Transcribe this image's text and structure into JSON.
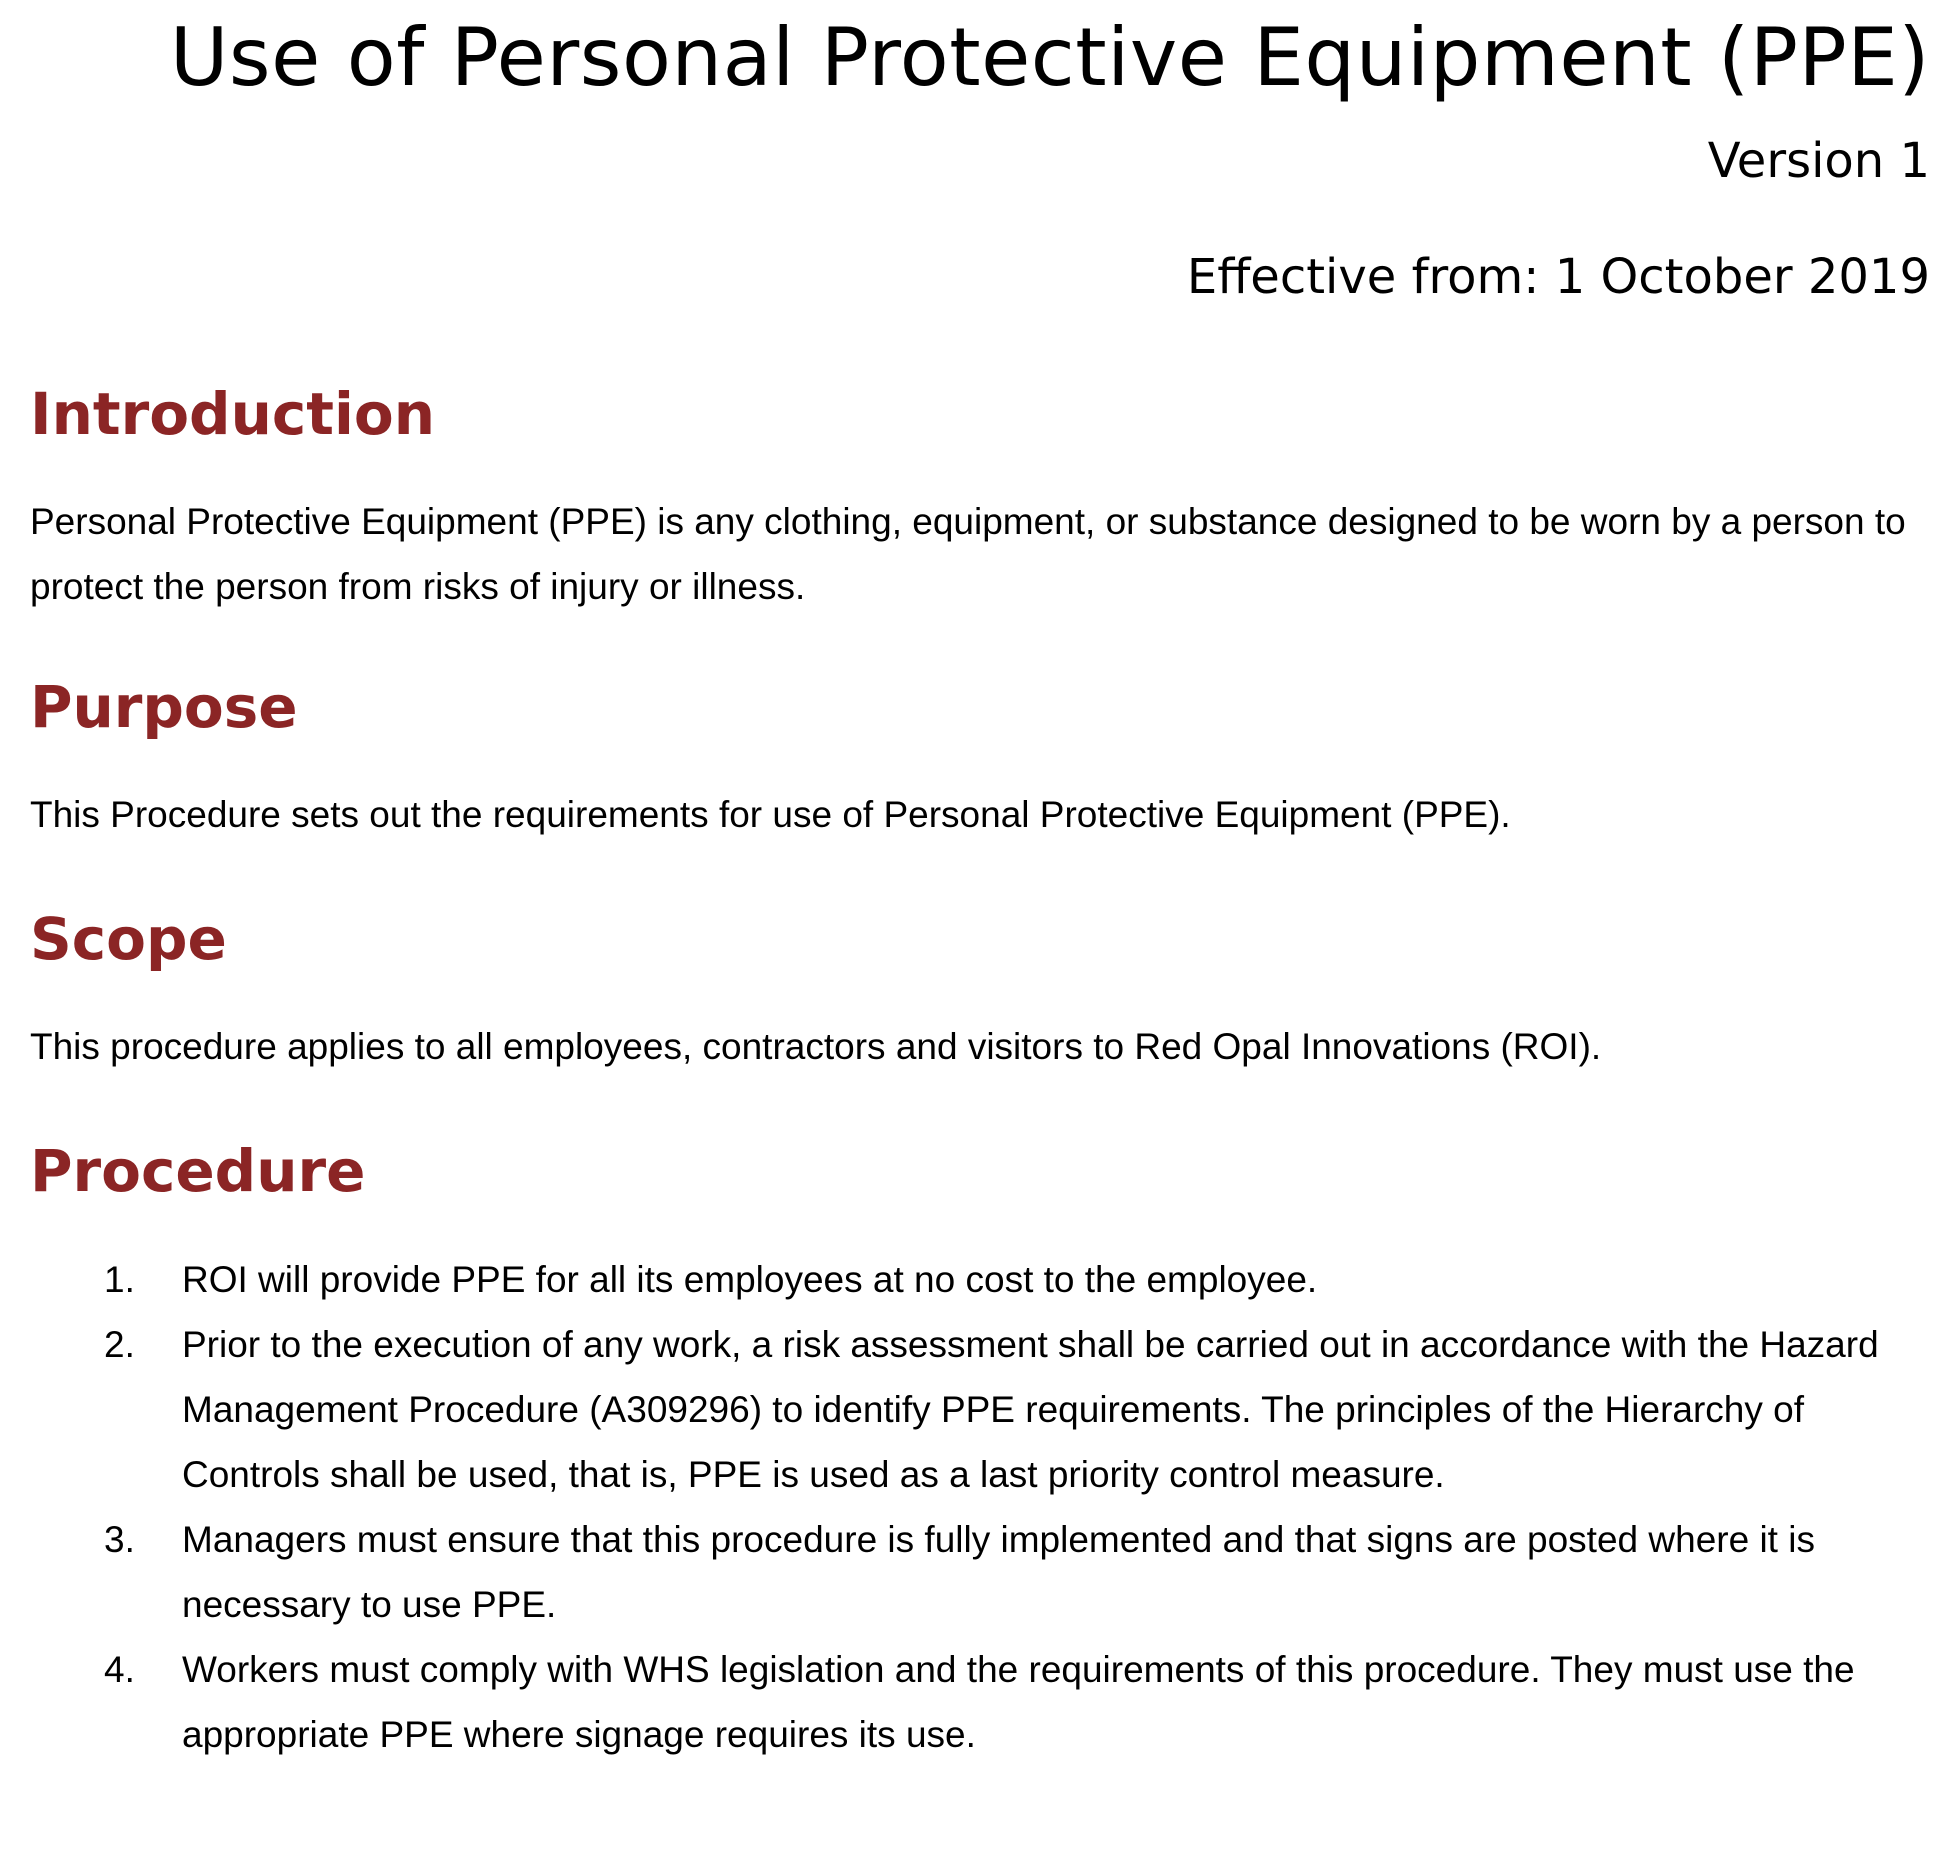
{
  "header": {
    "title": "Use of Personal Protective Equipment (PPE)",
    "version": "Version 1",
    "effective": "Effective from: 1 October 2019"
  },
  "colors": {
    "heading": "#8b2525",
    "text": "#000000"
  },
  "sections": {
    "introduction": {
      "heading": "Introduction",
      "body": "Personal Protective Equipment (PPE) is any clothing, equipment, or substance designed to be worn by a person to protect the person from risks of injury or illness."
    },
    "purpose": {
      "heading": "Purpose",
      "body": "This Procedure sets out the requirements for use of Personal Protective Equipment (PPE)."
    },
    "scope": {
      "heading": "Scope",
      "body": "This procedure applies to all employees, contractors and visitors to Red Opal Innovations (ROI)."
    },
    "procedure": {
      "heading": "Procedure",
      "items": [
        {
          "number": "1.",
          "text": "ROI will provide PPE for all its employees at no cost to the employee."
        },
        {
          "number": "2.",
          "text": "Prior to the execution of any work, a risk assessment shall be carried out in accordance with the Hazard Management Procedure (A309296) to identify PPE requirements. The principles of the Hierarchy of Controls shall be used, that is, PPE is used as a last priority control measure."
        },
        {
          "number": "3.",
          "text": "Managers must ensure that this procedure is fully implemented and that signs are posted where it is necessary to use PPE."
        },
        {
          "number": "4.",
          "text": "Workers must comply with WHS legislation and the requirements of this procedure. They must use the appropriate PPE where signage requires its use."
        }
      ]
    }
  }
}
